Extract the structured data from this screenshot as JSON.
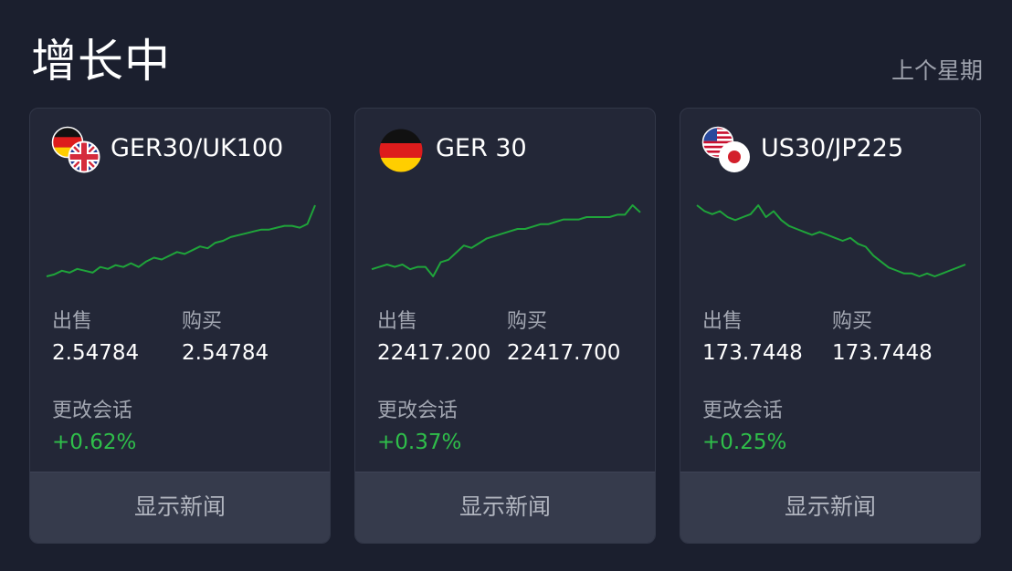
{
  "header": {
    "title": "增长中",
    "period": "上个星期"
  },
  "colors": {
    "background": "#1b1f2e",
    "card": "#232737",
    "button": "#363b4c",
    "positive": "#2fbf4a",
    "sparkline": "#1fa53a"
  },
  "cards": [
    {
      "name": "GER30/UK100",
      "flags": [
        "germany-flag-icon",
        "uk-flag-icon"
      ],
      "sell_label": "出售",
      "sell_value": "2.54784",
      "buy_label": "购买",
      "buy_value": "2.54784",
      "change_label": "更改会话",
      "change_value": "+0.62%",
      "news_label": "显示新闻",
      "trend": [
        47,
        48,
        50,
        49,
        51,
        50,
        49,
        52,
        51,
        53,
        52,
        54,
        52,
        55,
        57,
        56,
        58,
        60,
        59,
        61,
        63,
        62,
        65,
        66,
        68,
        69,
        70,
        71,
        72,
        72,
        73,
        74,
        74,
        73,
        75,
        85
      ]
    },
    {
      "name": "GER 30",
      "flags": [
        "germany-flag-icon"
      ],
      "sell_label": "出售",
      "sell_value": "22417.200",
      "buy_label": "购买",
      "buy_value": "22417.700",
      "change_label": "更改会话",
      "change_value": "+0.37%",
      "news_label": "显示新闻",
      "trend": [
        47,
        48,
        49,
        48,
        49,
        47,
        48,
        48,
        44,
        50,
        51,
        54,
        57,
        56,
        58,
        60,
        61,
        62,
        63,
        64,
        64,
        65,
        66,
        66,
        67,
        68,
        68,
        68,
        69,
        69,
        69,
        69,
        70,
        70,
        74,
        71
      ]
    },
    {
      "name": "US30/JP225",
      "flags": [
        "usa-flag-icon",
        "japan-flag-icon"
      ],
      "sell_label": "出售",
      "sell_value": "173.7448",
      "buy_label": "购买",
      "buy_value": "173.7448",
      "change_label": "更改会话",
      "change_value": "+0.25%",
      "news_label": "显示新闻",
      "trend": [
        66,
        64,
        63,
        64,
        62,
        61,
        62,
        63,
        66,
        62,
        64,
        61,
        59,
        58,
        57,
        56,
        57,
        56,
        55,
        54,
        55,
        53,
        52,
        49,
        47,
        45,
        44,
        43,
        43,
        42,
        43,
        42,
        43,
        44,
        45,
        46
      ]
    }
  ]
}
